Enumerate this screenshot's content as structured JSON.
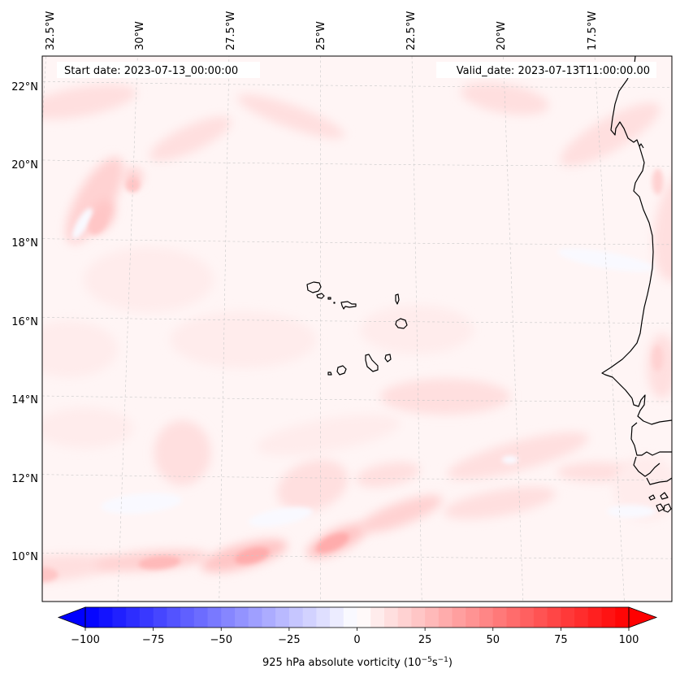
{
  "figure": {
    "start_date_label": "Start date: 2023-07-13_00:00:00",
    "valid_date_label": "Valid_date: 2023-07-13T11:00:00.00"
  },
  "chart_data": {
    "type": "heatmap",
    "title": "",
    "field": "925 hPa absolute vorticity",
    "map": {
      "projection": "conic (curved graticule)",
      "lon_range": [
        -33.0,
        -14.5
      ],
      "lat_range": [
        8.8,
        22.8
      ],
      "gridlines": true,
      "coastlines": true,
      "lon_ticks": [
        {
          "value": -32.5,
          "label": "32.5°W"
        },
        {
          "value": -30.0,
          "label": "30°W"
        },
        {
          "value": -27.5,
          "label": "27.5°W"
        },
        {
          "value": -25.0,
          "label": "25°W"
        },
        {
          "value": -22.5,
          "label": "22.5°W"
        },
        {
          "value": -20.0,
          "label": "20°W"
        },
        {
          "value": -17.5,
          "label": "17.5°W"
        }
      ],
      "lat_ticks": [
        {
          "value": 22,
          "label": "22°N"
        },
        {
          "value": 20,
          "label": "20°N"
        },
        {
          "value": 18,
          "label": "18°N"
        },
        {
          "value": 16,
          "label": "16°N"
        },
        {
          "value": 14,
          "label": "14°N"
        },
        {
          "value": 12,
          "label": "12°N"
        },
        {
          "value": 10,
          "label": "10°N"
        }
      ],
      "background_level": 2.5,
      "features": [
        {
          "name": "rainband-south-west",
          "lon": -31.8,
          "lat": 9.5,
          "value": 22
        },
        {
          "name": "rainband-mid-west",
          "lon": -29.0,
          "lat": 9.8,
          "value": 28
        },
        {
          "name": "rainband-core-1",
          "lon": -26.7,
          "lat": 10.0,
          "value": 32
        },
        {
          "name": "rainband-core-2",
          "lon": -24.8,
          "lat": 10.3,
          "value": 30
        },
        {
          "name": "rainband-core-3",
          "lon": -23.2,
          "lat": 10.8,
          "value": 22
        },
        {
          "name": "patch-east-12N",
          "lon": -20.5,
          "lat": 12.4,
          "value": 15
        },
        {
          "name": "patch-northwest-19N",
          "lon": -30.8,
          "lat": 18.8,
          "value": 18
        },
        {
          "name": "patch-northwest-20N",
          "lon": -30.2,
          "lat": 19.6,
          "value": 14
        },
        {
          "name": "coast-patch-19N",
          "lon": -16.0,
          "lat": 19.5,
          "value": 14
        },
        {
          "name": "coast-patch-14N",
          "lon": -16.2,
          "lat": 14.8,
          "value": 15
        },
        {
          "name": "band-north-22N",
          "lon": -20.0,
          "lat": 21.7,
          "value": 10
        },
        {
          "name": "weak-neg-west",
          "lon": -31.5,
          "lat": 18.5,
          "value": -5
        }
      ]
    },
    "colorbar": {
      "label_main": "925 hPa absolute vorticity (10",
      "label_exp1": "−5",
      "label_mid": "s",
      "label_exp2": "−1",
      "label_end": ")",
      "vmin": -100,
      "vmax": 100,
      "step": 5,
      "extend": "both",
      "colormap": "bwr",
      "ticks": [
        {
          "value": -100,
          "label": "−100"
        },
        {
          "value": -75,
          "label": "−75"
        },
        {
          "value": -50,
          "label": "−50"
        },
        {
          "value": -25,
          "label": "−25"
        },
        {
          "value": 0,
          "label": "0"
        },
        {
          "value": 25,
          "label": "25"
        },
        {
          "value": 50,
          "label": "50"
        },
        {
          "value": 75,
          "label": "75"
        },
        {
          "value": 100,
          "label": "100"
        }
      ]
    }
  }
}
